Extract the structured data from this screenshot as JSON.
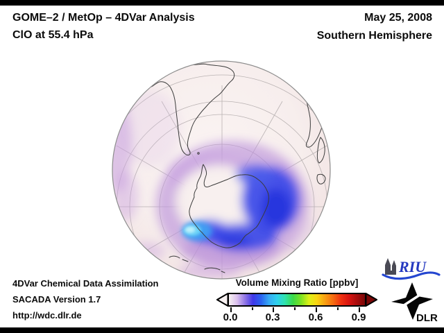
{
  "frame": {
    "bar_color": "#000000",
    "background": "#ffffff"
  },
  "header": {
    "title_line1": "GOME–2 / MetOp – 4DVar Analysis",
    "title_line2": "ClO at 55.4 hPa",
    "date": "May 25, 2008",
    "hemisphere": "Southern Hemisphere"
  },
  "footer": {
    "line1": "4DVar Chemical Data Assimilation",
    "line2": "SACADA Version 1.7",
    "line3": "http://wdc.dlr.de"
  },
  "colorbar": {
    "title": "Volume Mixing Ratio [ppbv]",
    "tick_labels": [
      "0.0",
      "0.3",
      "0.6",
      "0.9"
    ],
    "tick_positions_pct": [
      2,
      32.5,
      63.5,
      94.5
    ],
    "gradient": [
      "#f8f2f2",
      "#dcc2ee",
      "#9277e6",
      "#3f37e8",
      "#2a62f0",
      "#36aaf4",
      "#2fd0ee",
      "#2fe3ae",
      "#3bd94a",
      "#7ce222",
      "#ddf018",
      "#f8d512",
      "#f8a012",
      "#f66d10",
      "#ef3110",
      "#d81410",
      "#a80c0c",
      "#7a0707"
    ]
  },
  "logos": {
    "riu_text": "RIU",
    "dlr_text": "DLR"
  },
  "chart_data": {
    "type": "heatmap",
    "title": "GOME–2 / MetOp – 4DVar Analysis, ClO at 55.4 hPa",
    "date": "May 25, 2008",
    "region": "Southern Hemisphere",
    "projection": "orthographic globe, south polar view (South America top left, southern Africa top right, Antarctica center)",
    "colorbar": {
      "label": "Volume Mixing Ratio [ppbv]",
      "ticks": [
        0.0,
        0.3,
        0.6,
        0.9
      ],
      "range": [
        0.0,
        1.0
      ],
      "style": "rainbow with arrow ends (white-pink to violet-blue-cyan-green-yellow-orange-red-dark red)"
    },
    "features": [
      {
        "name": "vortex-enhancement",
        "value_ppbv": 0.15,
        "description": "Blue crescent of enhanced ClO over East Antarctica wrapping around the pole"
      },
      {
        "name": "maximum",
        "value_ppbv": 0.26,
        "description": "Bright cyan maximum west of the Antarctic Peninsula near 75S"
      },
      {
        "name": "purple-halo",
        "value_ppbv": 0.07,
        "description": "Purple halo surrounding the enhancement and along the western limb of the globe"
      },
      {
        "name": "background",
        "value_ppbv": 0.0,
        "description": "Pale pink near-zero ClO over the rest of the hemisphere"
      }
    ]
  }
}
